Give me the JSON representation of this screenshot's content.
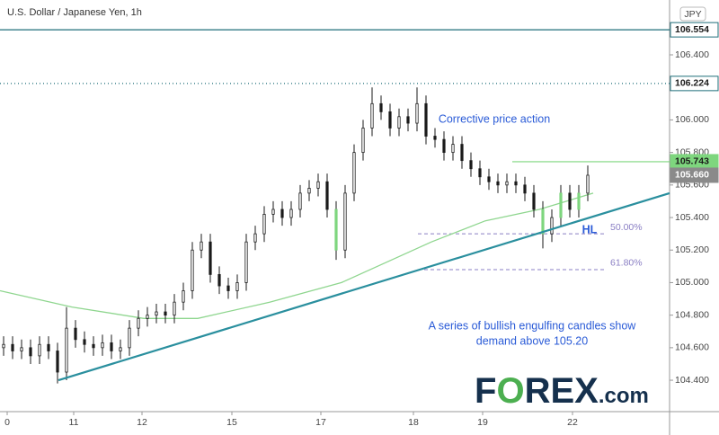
{
  "chart_data": {
    "type": "candlestick",
    "title": "U.S. Dollar / Japanese Yen, 1h",
    "currency": "JPY",
    "xlim": [
      0,
      186.25
    ],
    "xticks": [
      {
        "value": 2,
        "label": "0"
      },
      {
        "value": 20.5,
        "label": "11"
      },
      {
        "value": 39.5,
        "label": "12"
      },
      {
        "value": 64.5,
        "label": "15"
      },
      {
        "value": 89.25,
        "label": "17"
      },
      {
        "value": 115,
        "label": "18"
      },
      {
        "value": 134.25,
        "label": "19"
      },
      {
        "value": 159.25,
        "label": "22"
      }
    ],
    "ylim": [
      104.207,
      106.737
    ],
    "yticks": [
      {
        "value": 104.4,
        "label": "104.400"
      },
      {
        "value": 104.6,
        "label": "104.600"
      },
      {
        "value": 104.8,
        "label": "104.800"
      },
      {
        "value": 105,
        "label": "105.000"
      },
      {
        "value": 105.2,
        "label": "105.200"
      },
      {
        "value": 105.4,
        "label": "105.400"
      },
      {
        "value": 105.6,
        "label": "105.600"
      },
      {
        "value": 105.8,
        "label": "105.800"
      },
      {
        "value": 106,
        "label": "106.000"
      },
      {
        "value": 106.2,
        "label": "106.200"
      },
      {
        "value": 106.4,
        "label": "106.400"
      }
    ],
    "candles": {
      "up_color": "#ffffff",
      "down_color": "#1a1a1a",
      "highlight_color": "#7ed67e",
      "highlight": [
        37,
        60,
        62,
        64
      ],
      "x": [
        1,
        3.5,
        6,
        8.5,
        11,
        13.5,
        16,
        18.5,
        21,
        23.5,
        26,
        28.5,
        31,
        33.5,
        36,
        38.5,
        41,
        43.5,
        46,
        48.5,
        51,
        53.5,
        56,
        58.5,
        61,
        63.5,
        66,
        68.5,
        71,
        73.5,
        76,
        78.5,
        81,
        83.5,
        86,
        88.5,
        91,
        93.5,
        96,
        98.5,
        101,
        103.5,
        106,
        108.5,
        111,
        113.5,
        116,
        118.5,
        121,
        123.5,
        126,
        128.5,
        131,
        133.5,
        136,
        138.5,
        141,
        143.5,
        146,
        148.5,
        151,
        153.5,
        156,
        158.5,
        161,
        163.5
      ],
      "open": [
        104.6,
        104.62,
        104.58,
        104.6,
        104.55,
        104.62,
        104.58,
        104.45,
        104.72,
        104.65,
        104.62,
        104.6,
        104.63,
        104.58,
        104.6,
        104.72,
        104.78,
        104.8,
        104.82,
        104.8,
        104.88,
        104.95,
        105.2,
        105.25,
        105.05,
        104.98,
        104.95,
        105.0,
        105.25,
        105.3,
        105.42,
        105.45,
        105.4,
        105.45,
        105.55,
        105.58,
        105.62,
        105.45,
        105.2,
        105.55,
        105.8,
        105.95,
        106.1,
        106.05,
        105.95,
        106.02,
        105.98,
        106.1,
        105.9,
        105.88,
        105.8,
        105.85,
        105.75,
        105.7,
        105.65,
        105.62,
        105.6,
        105.62,
        105.6,
        105.55,
        105.45,
        105.3,
        105.4,
        105.55,
        105.45,
        105.55
      ],
      "high": [
        104.67,
        104.67,
        104.65,
        104.65,
        104.67,
        104.67,
        104.63,
        104.85,
        104.77,
        104.7,
        104.67,
        104.68,
        104.68,
        104.65,
        104.77,
        104.83,
        104.85,
        104.87,
        104.87,
        104.93,
        105.0,
        105.25,
        105.3,
        105.3,
        105.1,
        105.03,
        105.05,
        105.3,
        105.35,
        105.47,
        105.5,
        105.5,
        105.5,
        105.6,
        105.63,
        105.67,
        105.67,
        105.5,
        105.6,
        105.85,
        106.0,
        106.2,
        106.15,
        106.1,
        106.07,
        106.07,
        106.2,
        106.15,
        105.95,
        105.93,
        105.9,
        105.9,
        105.8,
        105.75,
        105.7,
        105.67,
        105.67,
        105.67,
        105.65,
        105.6,
        105.5,
        105.45,
        105.6,
        105.6,
        105.6,
        105.72
      ],
      "low": [
        104.55,
        104.53,
        104.53,
        104.5,
        104.5,
        104.53,
        104.38,
        104.4,
        104.6,
        104.57,
        104.55,
        104.55,
        104.53,
        104.53,
        104.55,
        104.67,
        104.73,
        104.75,
        104.75,
        104.75,
        104.83,
        104.9,
        105.15,
        105.0,
        104.93,
        104.9,
        104.9,
        104.95,
        105.2,
        105.25,
        105.37,
        105.35,
        105.35,
        105.4,
        105.5,
        105.53,
        105.4,
        105.14,
        105.15,
        105.5,
        105.75,
        105.9,
        106.0,
        105.9,
        105.9,
        105.93,
        105.93,
        105.85,
        105.83,
        105.75,
        105.75,
        105.7,
        105.65,
        105.6,
        105.57,
        105.55,
        105.55,
        105.55,
        105.5,
        105.4,
        105.21,
        105.25,
        105.35,
        105.4,
        105.4,
        105.5
      ],
      "close": [
        104.62,
        104.58,
        104.6,
        104.55,
        104.62,
        104.58,
        104.45,
        104.72,
        104.65,
        104.62,
        104.6,
        104.63,
        104.58,
        104.6,
        104.72,
        104.78,
        104.8,
        104.82,
        104.8,
        104.88,
        104.95,
        105.2,
        105.25,
        105.05,
        104.98,
        104.95,
        105.0,
        105.25,
        105.3,
        105.42,
        105.45,
        105.4,
        105.45,
        105.55,
        105.58,
        105.62,
        105.45,
        105.2,
        105.55,
        105.8,
        105.95,
        106.1,
        106.05,
        105.95,
        106.02,
        105.98,
        106.1,
        105.9,
        105.88,
        105.8,
        105.85,
        105.75,
        105.7,
        105.65,
        105.62,
        105.6,
        105.62,
        105.6,
        105.55,
        105.45,
        105.3,
        105.4,
        105.55,
        105.45,
        105.55,
        105.66
      ]
    },
    "moving_average": {
      "color": "#8fd68f",
      "x": [
        0,
        20,
        40,
        55,
        75,
        95,
        105,
        120,
        135,
        150,
        165
      ],
      "values": [
        104.95,
        104.85,
        104.78,
        104.78,
        104.88,
        105.0,
        105.1,
        105.25,
        105.38,
        105.45,
        105.55
      ]
    },
    "trendline": {
      "color": "#2a8f9e",
      "x": [
        16.25,
        186.25
      ],
      "values": [
        104.4,
        105.55
      ]
    },
    "levels": [
      {
        "value": 106.554,
        "style": "solid",
        "color": "#1f6f7a",
        "label_fill": "#ffffff",
        "label_color": "#1a1a1a"
      },
      {
        "value": 106.224,
        "style": "dotted",
        "color": "#1f6f7a",
        "label_fill": "#ffffff",
        "label_color": "#1a1a1a"
      },
      {
        "value": 105.743,
        "style": "solid",
        "color": "#7ed67e",
        "start": 142.5,
        "label_fill": "#7ed67e",
        "label_color": "#1a1a1a"
      },
      {
        "value": 105.66,
        "label": "105.660",
        "style": "none",
        "color": "#8a8a8a",
        "label_fill": "#8a8a8a",
        "label_color": "#ffffff"
      }
    ],
    "fib_levels": [
      {
        "value": 105.3,
        "label": "50.00%",
        "start": 116.25,
        "end": 168.75
      },
      {
        "value": 105.08,
        "label": "61.80%",
        "start": 116.25,
        "end": 168.75
      }
    ],
    "fib_color": "#8a7fc4",
    "annotations": [
      "Corrective price action",
      "HL",
      "A series of bullish engulfing candles show",
      "demand above 105.20"
    ]
  },
  "logo": {
    "parts": [
      "F",
      "O",
      "REX",
      ".com"
    ]
  }
}
